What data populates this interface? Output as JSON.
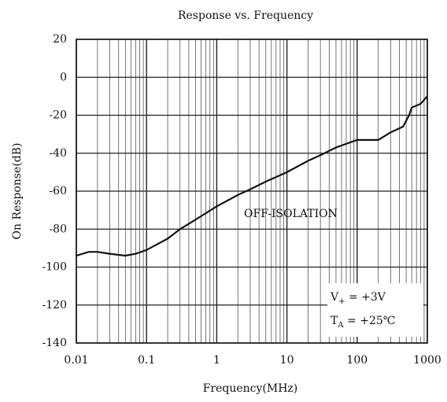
{
  "chart_data": {
    "type": "line",
    "title": "Response vs. Frequency",
    "xlabel": "Frequency(MHz)",
    "ylabel": "On Response(dB)",
    "xscale": "log",
    "xlim": [
      0.01,
      1000
    ],
    "xticks": [
      0.01,
      0.1,
      1,
      10,
      100,
      1000
    ],
    "ylim": [
      -140,
      20
    ],
    "yticks": [
      -140,
      -120,
      -100,
      -80,
      -60,
      -40,
      -20,
      0,
      20
    ],
    "grid": true,
    "series": [
      {
        "name": "OFF-ISOLATION",
        "color": "#111111",
        "x": [
          0.01,
          0.015,
          0.02,
          0.03,
          0.05,
          0.07,
          0.1,
          0.2,
          0.3,
          0.5,
          1,
          2,
          3,
          5,
          10,
          20,
          30,
          50,
          100,
          200,
          300,
          450,
          550,
          600,
          800,
          1000
        ],
        "values": [
          -94,
          -92,
          -92,
          -93,
          -94,
          -93,
          -91,
          -85,
          -80,
          -75,
          -68,
          -62,
          -59,
          -55,
          -50,
          -44,
          -41,
          -37,
          -33,
          -33,
          -29,
          -26,
          -20,
          -16,
          -14,
          -10
        ]
      }
    ],
    "annotations": [
      {
        "main": "V",
        "sub": "+",
        "rest": " = +3V"
      },
      {
        "main": "T",
        "sub": "A",
        "rest": " = +25℃"
      }
    ]
  }
}
